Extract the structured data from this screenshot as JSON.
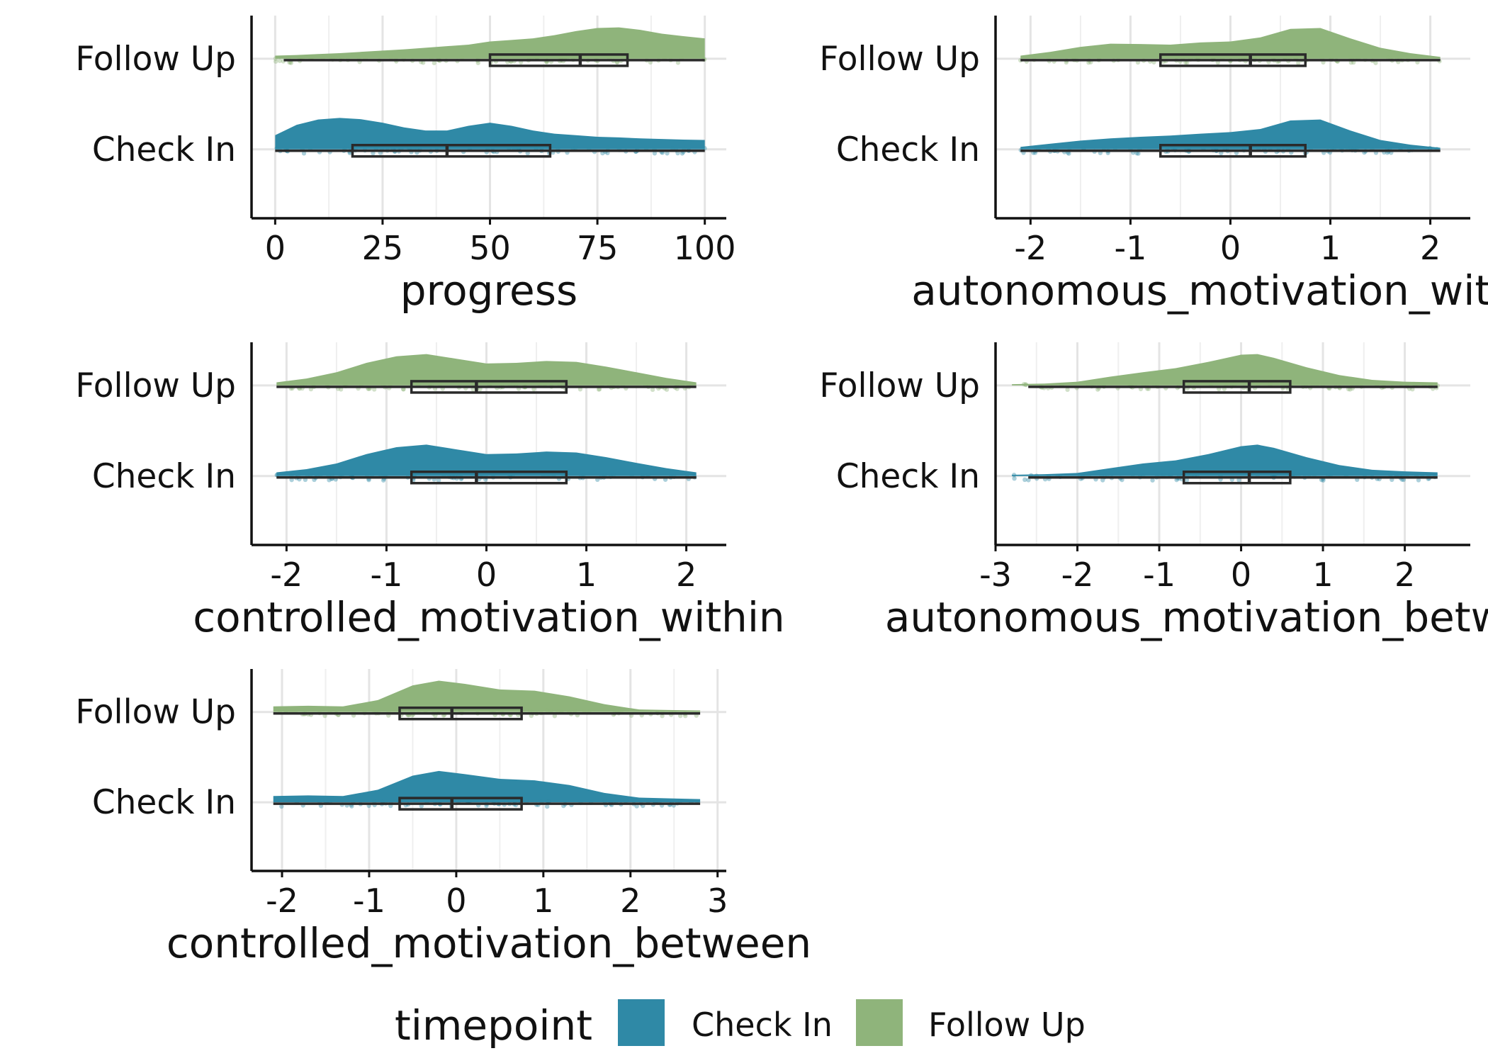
{
  "colors": {
    "check_in": "#2f89a6",
    "follow_up": "#8fb47b",
    "grid": "#e4e4e4",
    "axis": "#111111",
    "box": "#2a2a2a"
  },
  "legend": {
    "title": "timepoint",
    "items": [
      {
        "label": "Check In",
        "color": "#2f89a6"
      },
      {
        "label": "Follow Up",
        "color": "#8fb47b"
      }
    ]
  },
  "chart_data": [
    {
      "type": "raincloud",
      "xlabel": "progress",
      "xlim": [
        -5.5,
        105
      ],
      "ticks": [
        0,
        25,
        50,
        75,
        100
      ],
      "tick_labels": [
        "0",
        "25",
        "50",
        "75",
        "100"
      ],
      "categories": [
        "Check In",
        "Follow Up"
      ],
      "series": [
        {
          "category": "Check In",
          "density_x": [
            0,
            5,
            10,
            15,
            20,
            25,
            30,
            35,
            40,
            45,
            50,
            55,
            60,
            65,
            70,
            75,
            80,
            85,
            90,
            95,
            100
          ],
          "density": [
            0.45,
            0.78,
            0.95,
            1.0,
            0.96,
            0.85,
            0.7,
            0.6,
            0.6,
            0.75,
            0.85,
            0.75,
            0.6,
            0.5,
            0.45,
            0.4,
            0.38,
            0.35,
            0.33,
            0.31,
            0.3
          ],
          "box": {
            "min": 0,
            "q1": 18,
            "median": 40,
            "q3": 64,
            "max": 100
          }
        },
        {
          "category": "Follow Up",
          "density_x": [
            0,
            5,
            10,
            15,
            20,
            25,
            30,
            35,
            40,
            45,
            50,
            55,
            60,
            65,
            70,
            75,
            80,
            85,
            90,
            95,
            100
          ],
          "density": [
            0.1,
            0.12,
            0.15,
            0.18,
            0.22,
            0.26,
            0.3,
            0.35,
            0.4,
            0.45,
            0.55,
            0.6,
            0.65,
            0.75,
            0.88,
            0.98,
            1.0,
            0.92,
            0.8,
            0.72,
            0.65
          ],
          "box": {
            "min": 2,
            "q1": 50,
            "median": 71,
            "q3": 82,
            "max": 100
          }
        }
      ]
    },
    {
      "type": "raincloud",
      "xlabel": "autonomous_motivation_within",
      "xlim": [
        -2.35,
        2.4
      ],
      "ticks": [
        -2,
        -1,
        0,
        1,
        2
      ],
      "tick_labels": [
        "-2",
        "-1",
        "0",
        "1",
        "2"
      ],
      "categories": [
        "Check In",
        "Follow Up"
      ],
      "series": [
        {
          "category": "Check In",
          "density_x": [
            -2.1,
            -1.8,
            -1.5,
            -1.2,
            -0.9,
            -0.6,
            -0.3,
            0.0,
            0.3,
            0.6,
            0.9,
            1.2,
            1.5,
            1.8,
            2.1
          ],
          "density": [
            0.08,
            0.18,
            0.28,
            0.35,
            0.4,
            0.44,
            0.5,
            0.55,
            0.65,
            0.92,
            0.95,
            0.6,
            0.3,
            0.15,
            0.05
          ],
          "box": {
            "min": -2.1,
            "q1": -0.7,
            "median": 0.2,
            "q3": 0.75,
            "max": 2.1
          }
        },
        {
          "category": "Follow Up",
          "density_x": [
            -2.1,
            -1.8,
            -1.5,
            -1.2,
            -0.9,
            -0.6,
            -0.3,
            0.0,
            0.3,
            0.6,
            0.9,
            1.2,
            1.5,
            1.8,
            2.1
          ],
          "density": [
            0.1,
            0.22,
            0.38,
            0.48,
            0.47,
            0.45,
            0.52,
            0.55,
            0.68,
            0.95,
            0.98,
            0.65,
            0.35,
            0.18,
            0.06
          ],
          "box": {
            "min": -2.1,
            "q1": -0.7,
            "median": 0.2,
            "q3": 0.75,
            "max": 2.1
          }
        }
      ]
    },
    {
      "type": "raincloud",
      "xlabel": "controlled_motivation_within",
      "xlim": [
        -2.35,
        2.4
      ],
      "ticks": [
        -2,
        -1,
        0,
        1,
        2
      ],
      "tick_labels": [
        "-2",
        "-1",
        "0",
        "1",
        "2"
      ],
      "categories": [
        "Check In",
        "Follow Up"
      ],
      "series": [
        {
          "category": "Check In",
          "density_x": [
            -2.1,
            -1.8,
            -1.5,
            -1.2,
            -0.9,
            -0.6,
            -0.3,
            0.0,
            0.3,
            0.6,
            0.9,
            1.2,
            1.5,
            1.8,
            2.1
          ],
          "density": [
            0.12,
            0.22,
            0.4,
            0.7,
            0.92,
            1.0,
            0.85,
            0.7,
            0.72,
            0.78,
            0.75,
            0.6,
            0.42,
            0.25,
            0.12
          ],
          "box": {
            "min": -2.1,
            "q1": -0.75,
            "median": -0.1,
            "q3": 0.8,
            "max": 2.1
          }
        },
        {
          "category": "Follow Up",
          "density_x": [
            -2.1,
            -1.8,
            -1.5,
            -1.2,
            -0.9,
            -0.6,
            -0.3,
            0.0,
            0.3,
            0.6,
            0.9,
            1.2,
            1.5,
            1.8,
            2.1
          ],
          "density": [
            0.1,
            0.22,
            0.42,
            0.72,
            0.93,
            1.0,
            0.85,
            0.7,
            0.72,
            0.78,
            0.75,
            0.6,
            0.42,
            0.24,
            0.1
          ],
          "box": {
            "min": -2.1,
            "q1": -0.75,
            "median": -0.1,
            "q3": 0.8,
            "max": 2.1
          }
        }
      ]
    },
    {
      "type": "raincloud",
      "xlabel": "autonomous_motivation_between",
      "xlim": [
        -3.0,
        2.8
      ],
      "ticks": [
        -3,
        -2,
        -1,
        0,
        1,
        2
      ],
      "tick_labels": [
        "-3",
        "-2",
        "-1",
        "0",
        "1",
        "2"
      ],
      "categories": [
        "Check In",
        "Follow Up"
      ],
      "series": [
        {
          "category": "Check In",
          "density_x": [
            -2.8,
            -2.4,
            -2.0,
            -1.6,
            -1.2,
            -0.8,
            -0.4,
            0.0,
            0.2,
            0.4,
            0.8,
            1.2,
            1.6,
            2.0,
            2.4
          ],
          "density": [
            0.04,
            0.06,
            0.1,
            0.25,
            0.4,
            0.5,
            0.7,
            0.95,
            1.0,
            0.9,
            0.6,
            0.35,
            0.2,
            0.15,
            0.12
          ],
          "box": {
            "min": -2.6,
            "q1": -0.7,
            "median": 0.1,
            "q3": 0.6,
            "max": 2.4
          }
        },
        {
          "category": "Follow Up",
          "density_x": [
            -2.8,
            -2.4,
            -2.0,
            -1.6,
            -1.2,
            -0.8,
            -0.4,
            0.0,
            0.2,
            0.4,
            0.8,
            1.2,
            1.6,
            2.0,
            2.4
          ],
          "density": [
            0.04,
            0.06,
            0.12,
            0.28,
            0.42,
            0.55,
            0.75,
            0.98,
            1.0,
            0.88,
            0.58,
            0.33,
            0.18,
            0.12,
            0.1
          ],
          "box": {
            "min": -2.6,
            "q1": -0.7,
            "median": 0.1,
            "q3": 0.6,
            "max": 2.4
          }
        }
      ]
    },
    {
      "type": "raincloud",
      "xlabel": "controlled_motivation_between",
      "xlim": [
        -2.35,
        3.1
      ],
      "ticks": [
        -2,
        -1,
        0,
        1,
        2,
        3
      ],
      "tick_labels": [
        "-2",
        "-1",
        "0",
        "1",
        "2",
        "3"
      ],
      "categories": [
        "Check In",
        "Follow Up"
      ],
      "series": [
        {
          "category": "Check In",
          "density_x": [
            -2.1,
            -1.7,
            -1.3,
            -0.9,
            -0.5,
            -0.2,
            0.1,
            0.5,
            0.9,
            1.3,
            1.7,
            2.1,
            2.5,
            2.8
          ],
          "density": [
            0.2,
            0.22,
            0.2,
            0.4,
            0.85,
            1.0,
            0.9,
            0.75,
            0.7,
            0.55,
            0.3,
            0.15,
            0.12,
            0.1
          ],
          "box": {
            "min": -2.1,
            "q1": -0.65,
            "median": -0.05,
            "q3": 0.75,
            "max": 2.8
          }
        },
        {
          "category": "Follow Up",
          "density_x": [
            -2.1,
            -1.7,
            -1.3,
            -0.9,
            -0.5,
            -0.2,
            0.1,
            0.5,
            0.9,
            1.3,
            1.7,
            2.1,
            2.5,
            2.8
          ],
          "density": [
            0.18,
            0.2,
            0.18,
            0.38,
            0.85,
            1.0,
            0.9,
            0.72,
            0.68,
            0.5,
            0.25,
            0.08,
            0.06,
            0.05
          ],
          "box": {
            "min": -2.1,
            "q1": -0.65,
            "median": -0.05,
            "q3": 0.75,
            "max": 2.8
          }
        }
      ]
    }
  ]
}
